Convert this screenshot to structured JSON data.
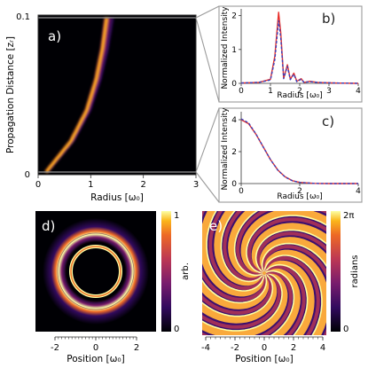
{
  "chart_data": [
    {
      "panel": "a)",
      "type": "heatmap",
      "xlabel": "Radius [ω₀]",
      "ylabel": "Propagation Distance [zᵣ]",
      "xlim": [
        0,
        3
      ],
      "ylim": [
        0,
        0.1
      ],
      "xticks": [
        "0",
        "1",
        "2",
        "3"
      ],
      "yticks": [
        "0",
        "0.1"
      ],
      "colormap": "inferno",
      "ring_radius_vs_z": {
        "z": [
          0,
          0.02,
          0.04,
          0.06,
          0.08,
          0.1
        ],
        "r": [
          0.15,
          0.62,
          0.92,
          1.1,
          1.22,
          1.3
        ]
      }
    },
    {
      "panel": "b)",
      "type": "line",
      "xlabel": "Radius [ω₀]",
      "ylabel": "Normalized Intensity",
      "xlim": [
        0,
        4
      ],
      "ylim": [
        0,
        2.2
      ],
      "xticks": [
        "0",
        "1",
        "2",
        "3",
        "4"
      ],
      "yticks": [
        "0",
        "1",
        "2"
      ],
      "series": [
        {
          "color": "#e8302a",
          "style": "solid",
          "x": [
            0,
            0.6,
            1.0,
            1.15,
            1.28,
            1.35,
            1.45,
            1.58,
            1.68,
            1.8,
            1.9,
            2.05,
            2.15,
            2.35,
            2.6,
            2.8,
            3.2,
            4.0
          ],
          "y": [
            0.01,
            0.03,
            0.12,
            0.8,
            2.1,
            1.5,
            0.15,
            0.55,
            0.12,
            0.3,
            0.06,
            0.14,
            0.03,
            0.06,
            0.03,
            0.02,
            0.01,
            0.0
          ]
        },
        {
          "color": "#3c3fb8",
          "style": "dashed",
          "x": [
            0,
            0.6,
            1.0,
            1.15,
            1.28,
            1.35,
            1.45,
            1.58,
            1.68,
            1.8,
            1.9,
            2.05,
            2.15,
            2.35,
            2.6,
            2.8,
            3.2,
            4.0
          ],
          "y": [
            0.01,
            0.03,
            0.1,
            0.7,
            1.85,
            1.35,
            0.14,
            0.5,
            0.11,
            0.27,
            0.05,
            0.12,
            0.03,
            0.05,
            0.03,
            0.02,
            0.01,
            0.0
          ]
        }
      ]
    },
    {
      "panel": "c)",
      "type": "line",
      "xlabel": "Radius [ω₀]",
      "ylabel": "Normalized Intensity",
      "xlim": [
        0,
        4
      ],
      "ylim": [
        0,
        4.5
      ],
      "xticks": [
        "0",
        "2",
        "4"
      ],
      "yticks": [
        "0",
        "2",
        "4"
      ],
      "series": [
        {
          "color": "#e8302a",
          "style": "solid",
          "x": [
            0,
            0.25,
            0.5,
            0.75,
            1.0,
            1.25,
            1.5,
            1.75,
            2.0,
            2.5,
            3.0,
            4.0
          ],
          "y": [
            4.0,
            3.75,
            3.1,
            2.3,
            1.5,
            0.85,
            0.42,
            0.18,
            0.07,
            0.01,
            0.0,
            0.0
          ]
        },
        {
          "color": "#3c3fb8",
          "style": "dashed",
          "x": [
            0,
            0.25,
            0.5,
            0.75,
            1.0,
            1.25,
            1.5,
            1.75,
            2.0,
            2.5,
            3.0,
            4.0
          ],
          "y": [
            4.05,
            3.8,
            3.12,
            2.3,
            1.5,
            0.84,
            0.41,
            0.17,
            0.07,
            0.01,
            0.0,
            0.0
          ]
        }
      ]
    },
    {
      "panel": "d)",
      "type": "heatmap",
      "xlabel": "Position [ω₀]",
      "xticks": [
        "-2",
        "0",
        "2"
      ],
      "colormap": "inferno",
      "colorbar": {
        "label": "arb.",
        "ticks": [
          "1",
          "0"
        ]
      },
      "ring_radius": 1.2
    },
    {
      "panel": "e)",
      "type": "heatmap",
      "xlabel": "Position [ω₀]",
      "xticks": [
        "-4",
        "-2",
        "0",
        "2",
        "4"
      ],
      "colormap": "inferno",
      "colorbar": {
        "label": "radians",
        "ticks": [
          "2π",
          "0"
        ]
      },
      "spiral_arms": 12
    }
  ]
}
